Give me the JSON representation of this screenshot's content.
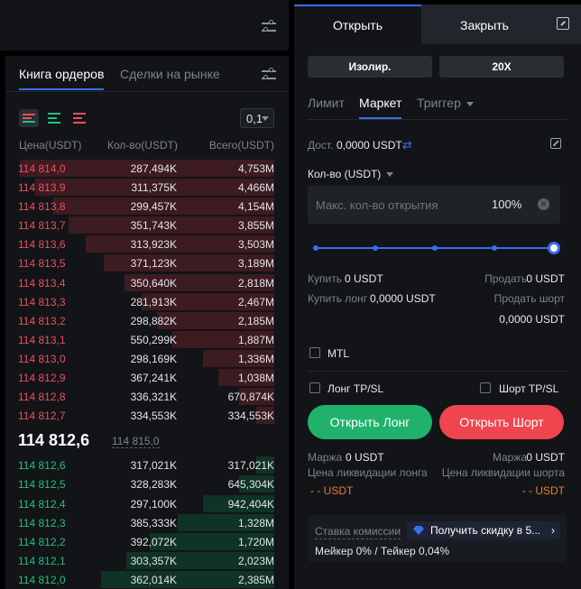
{
  "orderbook": {
    "tabs": [
      {
        "label": "Книга ордеров",
        "active": true
      },
      {
        "label": "Сделки на рынке",
        "active": false
      }
    ],
    "precision": "0,1",
    "columns": {
      "price": "Цена(USDT)",
      "qty": "Кол-во(USDT)",
      "total": "Всего(USDT)"
    },
    "asks": [
      {
        "price": "114 814,0",
        "qty": "287,494K",
        "total": "4,753M",
        "depth": 1.0
      },
      {
        "price": "114 813,9",
        "qty": "311,375K",
        "total": "4,466M",
        "depth": 0.94
      },
      {
        "price": "114 813,8",
        "qty": "299,457K",
        "total": "4,154M",
        "depth": 0.87
      },
      {
        "price": "114 813,7",
        "qty": "351,743K",
        "total": "3,855M",
        "depth": 0.81
      },
      {
        "price": "114 813,6",
        "qty": "313,923K",
        "total": "3,503M",
        "depth": 0.74
      },
      {
        "price": "114 813,5",
        "qty": "371,123K",
        "total": "3,189M",
        "depth": 0.67
      },
      {
        "price": "114 813,4",
        "qty": "350,640K",
        "total": "2,818M",
        "depth": 0.59
      },
      {
        "price": "114 813,3",
        "qty": "281,913K",
        "total": "2,467M",
        "depth": 0.52
      },
      {
        "price": "114 813,2",
        "qty": "298,882K",
        "total": "2,185M",
        "depth": 0.46
      },
      {
        "price": "114 813,1",
        "qty": "550,299K",
        "total": "1,887M",
        "depth": 0.4
      },
      {
        "price": "114 813,0",
        "qty": "298,169K",
        "total": "1,336M",
        "depth": 0.28
      },
      {
        "price": "114 812,9",
        "qty": "367,241K",
        "total": "1,038M",
        "depth": 0.22
      },
      {
        "price": "114 812,8",
        "qty": "336,321K",
        "total": "670,874K",
        "depth": 0.14
      },
      {
        "price": "114 812,7",
        "qty": "334,553K",
        "total": "334,553K",
        "depth": 0.07
      }
    ],
    "last_price": "114 812,6",
    "mark_price": "114 815,0",
    "bids": [
      {
        "price": "114 812,6",
        "qty": "317,021K",
        "total": "317,021K",
        "depth": 0.07
      },
      {
        "price": "114 812,5",
        "qty": "328,283K",
        "total": "645,304K",
        "depth": 0.14
      },
      {
        "price": "114 812,4",
        "qty": "297,100K",
        "total": "942,404K",
        "depth": 0.28
      },
      {
        "price": "114 812,3",
        "qty": "385,333K",
        "total": "1,328M",
        "depth": 0.38
      },
      {
        "price": "114 812,2",
        "qty": "392,072K",
        "total": "1,720M",
        "depth": 0.49
      },
      {
        "price": "114 812,1",
        "qty": "303,357K",
        "total": "2,023M",
        "depth": 0.58
      },
      {
        "price": "114 812,0",
        "qty": "362,014K",
        "total": "2,385M",
        "depth": 0.68
      }
    ]
  },
  "trade": {
    "tabs": {
      "open": "Открыть",
      "close": "Закрыть"
    },
    "margin_mode": "Изолир.",
    "leverage": "20X",
    "order_types": {
      "limit": "Лимит",
      "market": "Маркет",
      "trigger": "Триггер"
    },
    "available_label": "Дост.",
    "available_value": "0,0000 USDT",
    "qty_label": "Кол-во (USDT)",
    "qty_placeholder": "Макс. кол-во открытия",
    "qty_percent": "100%",
    "slider_percent": 100,
    "buy_label": "Купить",
    "buy_value": "0 USDT",
    "sell_label": "Продать",
    "sell_value": "0 USDT",
    "buy_long_label": "Купить лонг",
    "buy_long_value": "0,0000 USDT",
    "sell_short_label": "Продать шорт",
    "sell_short_value": "0,0000 USDT",
    "mtl_label": "MTL",
    "long_tpsl_label": "Лонг TP/SL",
    "short_tpsl_label": "Шорт TP/SL",
    "open_long": "Открыть Лонг",
    "open_short": "Открыть Шорт",
    "margin_label": "Маржа",
    "margin_long_value": "0 USDT",
    "margin_short_value": "0 USDT",
    "liq_long_label": "Цена ликвидации лонга",
    "liq_short_label": "Цена ликвидации шорта",
    "liq_long_value": "- - USDT",
    "liq_short_value": "- - USDT",
    "fee_label": "Ставка комиссии",
    "discount_label": "Получить скидку в 5...",
    "fee_rates": "Мейкер 0% / Тейкер 0,04%"
  },
  "colors": {
    "accent": "#3a6df0",
    "long": "#20b26c",
    "short": "#ef454f",
    "ask_text": "#ee4f5f",
    "bid_text": "#21c178"
  }
}
